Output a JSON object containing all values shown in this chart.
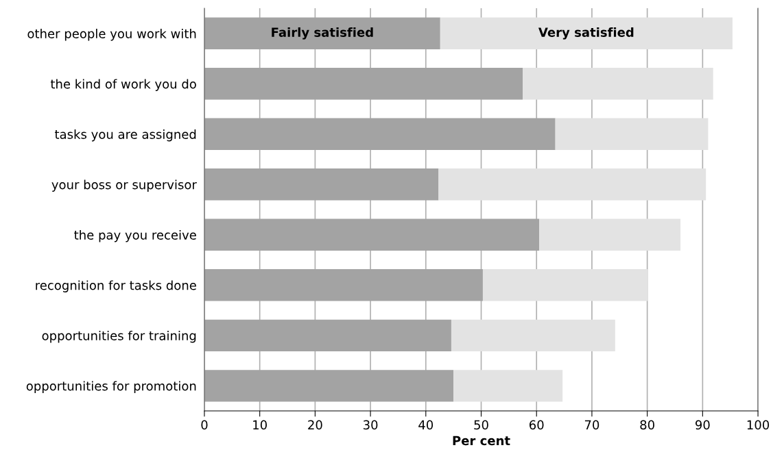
{
  "chart_data": {
    "type": "bar",
    "orientation": "horizontal",
    "stacked": true,
    "categories": [
      "other people you work with",
      "the kind of work you do",
      "tasks you are assigned",
      "your boss or supervisor",
      "the pay you receive",
      "recognition for tasks done",
      "opportunities for training",
      "opportunities for promotion"
    ],
    "series": [
      {
        "name": "Fairly satisfied",
        "color": "#a3a3a3",
        "values": [
          42.6,
          57.5,
          63.4,
          42.3,
          60.5,
          50.3,
          44.6,
          45.0
        ]
      },
      {
        "name": "Very satisfied",
        "color": "#e3e3e3",
        "values": [
          52.8,
          34.4,
          27.6,
          48.3,
          25.5,
          29.8,
          29.6,
          19.7
        ]
      }
    ],
    "xlabel": "Per cent",
    "xlim": [
      0,
      100
    ],
    "xticks": [
      0,
      10,
      20,
      30,
      40,
      50,
      60,
      70,
      80,
      90,
      100
    ],
    "grid": "x",
    "legend": false
  }
}
